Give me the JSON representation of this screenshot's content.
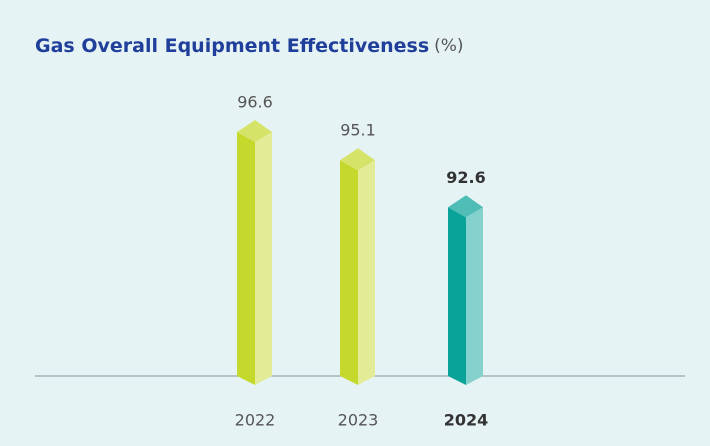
{
  "chart_data": {
    "type": "bar3d",
    "title": "Gas Overall Equipment Effectiveness",
    "title_unit": "(%)",
    "categories": [
      "2022",
      "2023",
      "2024"
    ],
    "values": [
      96.6,
      95.1,
      92.6
    ],
    "colors": [
      "#c5d92d",
      "#c5d92d",
      "#0aa39a"
    ],
    "bold": [
      false,
      false,
      true
    ],
    "ylim": [
      83,
      100
    ]
  }
}
